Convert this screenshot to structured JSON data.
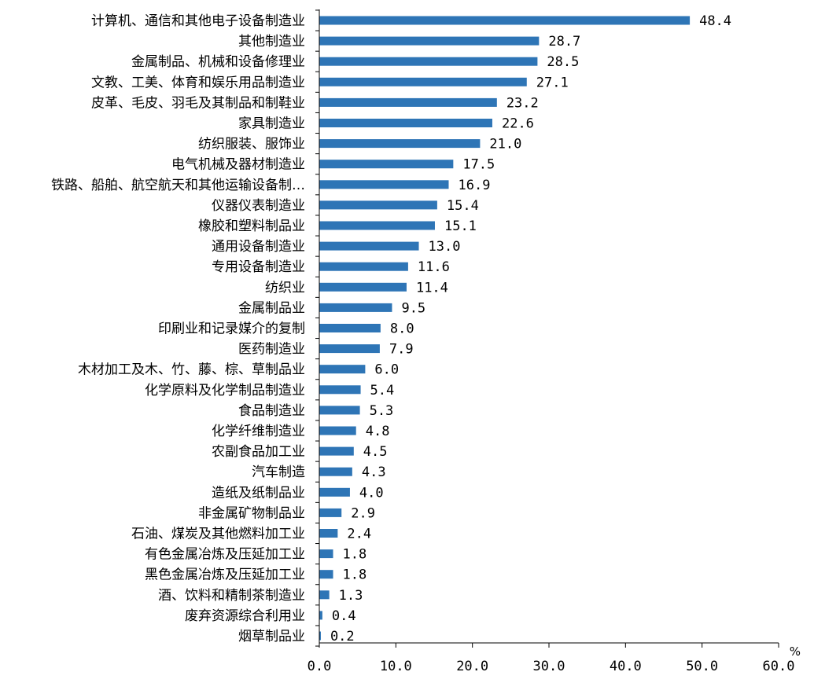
{
  "chart_data": {
    "type": "bar",
    "orientation": "horizontal",
    "unit": "%",
    "xlim": [
      0,
      60
    ],
    "x_ticks": [
      "0.0",
      "10.0",
      "20.0",
      "30.0",
      "40.0",
      "50.0",
      "60.0"
    ],
    "grid": false,
    "bar_color": "#2E75B6",
    "categories": [
      "计算机、通信和其他电子设备制造业",
      "其他制造业",
      "金属制品、机械和设备修理业",
      "文教、工美、体育和娱乐用品制造业",
      "皮革、毛皮、羽毛及其制品和制鞋业",
      "家具制造业",
      "纺织服装、服饰业",
      "电气机械及器材制造业",
      "铁路、船舶、航空航天和其他运输设备制…",
      "仪器仪表制造业",
      "橡胶和塑料制品业",
      "通用设备制造业",
      "专用设备制造业",
      "纺织业",
      "金属制品业",
      "印刷业和记录媒介的复制",
      "医药制造业",
      "木材加工及木、竹、藤、棕、草制品业",
      "化学原料及化学制品制造业",
      "食品制造业",
      "化学纤维制造业",
      "农副食品加工业",
      "汽车制造",
      "造纸及纸制品业",
      "非金属矿物制品业",
      "石油、煤炭及其他燃料加工业",
      "有色金属冶炼及压延加工业",
      "黑色金属冶炼及压延加工业",
      "酒、饮料和精制茶制造业",
      "废弃资源综合利用业",
      "烟草制品业"
    ],
    "values": [
      48.4,
      28.7,
      28.5,
      27.1,
      23.2,
      22.6,
      21.0,
      17.5,
      16.9,
      15.4,
      15.1,
      13.0,
      11.6,
      11.4,
      9.5,
      8.0,
      7.9,
      6.0,
      5.4,
      5.3,
      4.8,
      4.5,
      4.3,
      4.0,
      2.9,
      2.4,
      1.8,
      1.8,
      1.3,
      0.4,
      0.2
    ],
    "value_labels": [
      "48.4",
      "28.7",
      "28.5",
      "27.1",
      "23.2",
      "22.6",
      "21.0",
      "17.5",
      "16.9",
      "15.4",
      "15.1",
      "13.0",
      "11.6",
      "11.4",
      "9.5",
      "8.0",
      "7.9",
      "6.0",
      "5.4",
      "5.3",
      "4.8",
      "4.5",
      "4.3",
      "4.0",
      "2.9",
      "2.4",
      "1.8",
      "1.8",
      "1.3",
      "0.4",
      "0.2"
    ]
  }
}
